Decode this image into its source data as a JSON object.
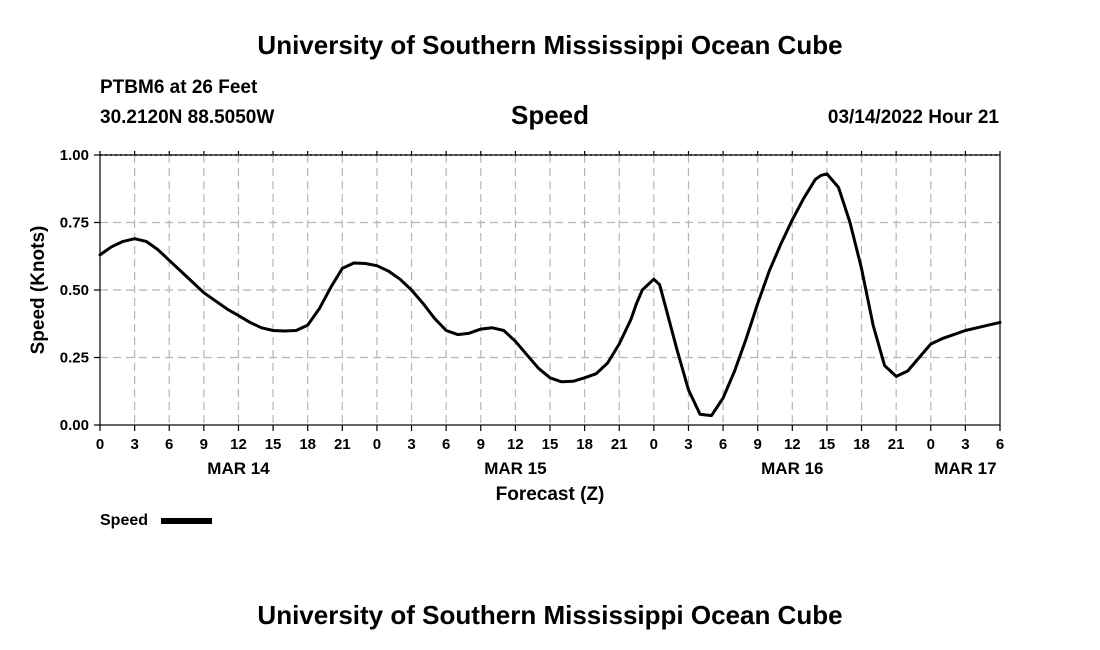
{
  "header": {
    "title": "University of Southern Mississippi Ocean Cube",
    "station": "PTBM6 at 26 Feet",
    "coords": "30.2120N  88.5050W",
    "datetime": "03/14/2022 Hour 21",
    "footer_title": "University of Southern Mississippi Ocean Cube"
  },
  "chart_data": {
    "type": "line",
    "title": "Speed",
    "xlabel": "Forecast (Z)",
    "ylabel": "Speed (Knots)",
    "ylim": [
      0,
      1
    ],
    "xlim": [
      0,
      78
    ],
    "grid": true,
    "x_unit": "hours from MAR 14 00Z",
    "yticks": [
      {
        "value": 0.0,
        "label": "0.00"
      },
      {
        "value": 0.25,
        "label": "0.25"
      },
      {
        "value": 0.5,
        "label": "0.50"
      },
      {
        "value": 0.75,
        "label": "0.75"
      },
      {
        "value": 1.0,
        "label": "1.00"
      }
    ],
    "xtick_labels": [
      "0",
      "3",
      "6",
      "9",
      "12",
      "15",
      "18",
      "21",
      "0",
      "3",
      "6",
      "9",
      "12",
      "15",
      "18",
      "21",
      "0",
      "3",
      "6",
      "9",
      "12",
      "15",
      "18",
      "21",
      "0",
      "3",
      "6"
    ],
    "date_labels": [
      {
        "hour": 12,
        "label": "MAR 14"
      },
      {
        "hour": 36,
        "label": "MAR 15"
      },
      {
        "hour": 60,
        "label": "MAR 16"
      },
      {
        "hour": 75,
        "label": "MAR 17"
      }
    ],
    "legend": {
      "label": "Speed",
      "placement": "bottom-left"
    },
    "series": [
      {
        "name": "Speed",
        "color": "#000000",
        "x": [
          0,
          1,
          2,
          3,
          4,
          5,
          6,
          7,
          8,
          9,
          10,
          11,
          12,
          13,
          14,
          15,
          16,
          17,
          18,
          19,
          20,
          21,
          22,
          23,
          24,
          25,
          26,
          27,
          28,
          29,
          30,
          31,
          32,
          33,
          34,
          35,
          36,
          37,
          38,
          39,
          40,
          41,
          42,
          43,
          44,
          45,
          46,
          46.5,
          47,
          48,
          48.5,
          49,
          50,
          51,
          52,
          53,
          54,
          55,
          56,
          57,
          58,
          59,
          60,
          61,
          62,
          62.5,
          63,
          64,
          65,
          66,
          67,
          68,
          69,
          70,
          71,
          72,
          73,
          74,
          75,
          76,
          77,
          78
        ],
        "values": [
          0.63,
          0.66,
          0.68,
          0.69,
          0.68,
          0.65,
          0.61,
          0.57,
          0.53,
          0.49,
          0.46,
          0.43,
          0.405,
          0.38,
          0.36,
          0.35,
          0.348,
          0.35,
          0.37,
          0.43,
          0.51,
          0.58,
          0.6,
          0.598,
          0.59,
          0.57,
          0.54,
          0.5,
          0.45,
          0.395,
          0.35,
          0.335,
          0.34,
          0.355,
          0.36,
          0.35,
          0.31,
          0.26,
          0.21,
          0.175,
          0.16,
          0.162,
          0.175,
          0.19,
          0.23,
          0.3,
          0.39,
          0.45,
          0.5,
          0.54,
          0.52,
          0.44,
          0.28,
          0.13,
          0.04,
          0.035,
          0.1,
          0.2,
          0.32,
          0.45,
          0.57,
          0.67,
          0.76,
          0.84,
          0.91,
          0.925,
          0.93,
          0.88,
          0.75,
          0.58,
          0.37,
          0.22,
          0.18,
          0.2,
          0.25,
          0.3,
          0.32,
          0.335,
          0.35,
          0.36,
          0.37,
          0.38
        ]
      }
    ]
  }
}
